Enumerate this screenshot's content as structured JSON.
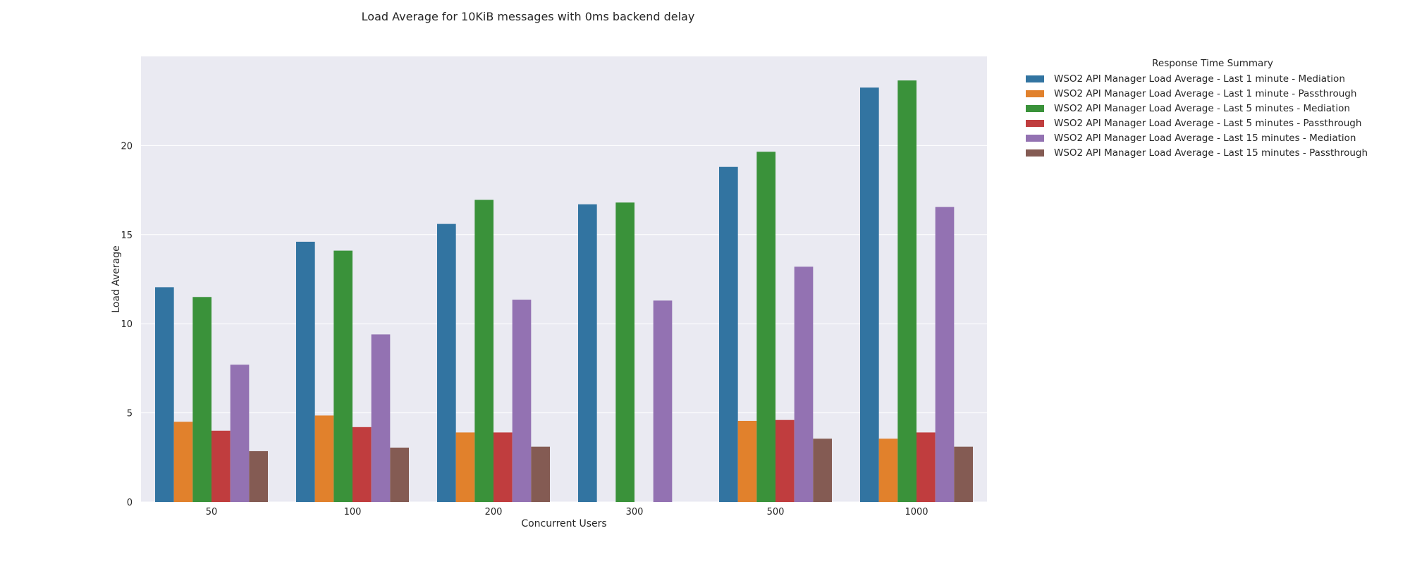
{
  "chart_data": {
    "type": "bar",
    "title": "Load Average for 10KiB messages with 0ms backend delay",
    "xlabel": "Concurrent Users",
    "ylabel": "Load Average",
    "categories": [
      "50",
      "100",
      "200",
      "300",
      "500",
      "1000"
    ],
    "ylim": [
      0,
      25
    ],
    "yticks": [
      0,
      5,
      10,
      15,
      20
    ],
    "grid": true,
    "legend_title": "Response Time Summary",
    "legend_position": "outside-top-right",
    "series": [
      {
        "name": "WSO2 API Manager Load Average - Last 1 minute - Mediation",
        "color": "#3274a1",
        "values": [
          12.05,
          14.6,
          15.6,
          16.7,
          18.8,
          23.25
        ]
      },
      {
        "name": "WSO2 API Manager Load Average - Last 1 minute - Passthrough",
        "color": "#e1812c",
        "values": [
          4.5,
          4.85,
          3.9,
          null,
          4.55,
          3.55
        ]
      },
      {
        "name": "WSO2 API Manager Load Average - Last 5 minutes - Mediation",
        "color": "#3a923a",
        "values": [
          11.5,
          14.1,
          16.95,
          16.8,
          19.65,
          23.65
        ]
      },
      {
        "name": "WSO2 API Manager Load Average - Last 5 minutes - Passthrough",
        "color": "#c03d3e",
        "values": [
          4.0,
          4.2,
          3.9,
          null,
          4.6,
          3.9
        ]
      },
      {
        "name": "WSO2 API Manager Load Average - Last 15 minutes - Mediation",
        "color": "#9372b2",
        "values": [
          7.7,
          9.4,
          11.35,
          11.3,
          13.2,
          16.55
        ]
      },
      {
        "name": "WSO2 API Manager Load Average - Last 15 minutes - Passthrough",
        "color": "#845b53",
        "values": [
          2.85,
          3.05,
          3.1,
          null,
          3.55,
          3.1
        ]
      }
    ]
  },
  "colors": {
    "plot_background": "#eaeaf2",
    "grid": "#ffffff"
  }
}
